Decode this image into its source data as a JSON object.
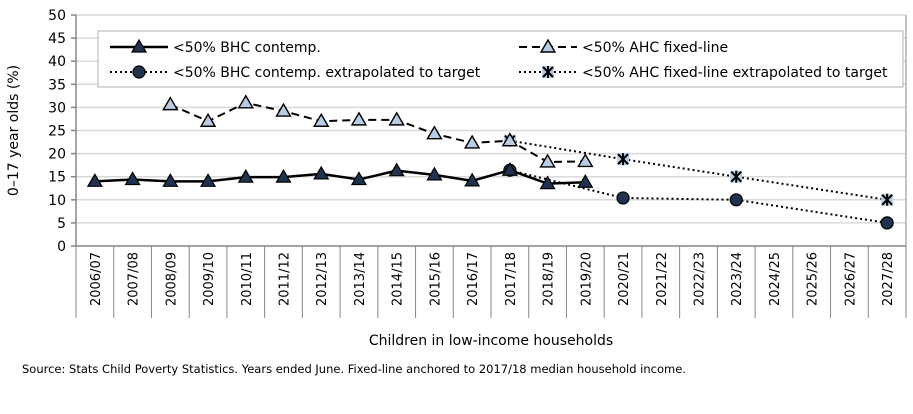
{
  "chart_data": {
    "type": "line",
    "title": "",
    "xlabel": "Children in low-income households",
    "ylabel": "0–17 year olds (%)",
    "ylim": [
      0,
      50
    ],
    "yticks": [
      0,
      5,
      10,
      15,
      20,
      25,
      30,
      35,
      40,
      45,
      50
    ],
    "grid": true,
    "legend_position": "top",
    "categories": [
      "2006/07",
      "2007/08",
      "2008/09",
      "2009/10",
      "2010/11",
      "2011/12",
      "2012/13",
      "2013/14",
      "2014/15",
      "2015/16",
      "2016/17",
      "2017/18",
      "2018/19",
      "2019/20",
      "2020/21",
      "2021/22",
      "2022/23",
      "2023/24",
      "2024/25",
      "2025/26",
      "2026/27",
      "2027/28"
    ],
    "series": [
      {
        "name": "<50% BHC contemp.",
        "style": "solid",
        "marker": "triangle-filled",
        "values": [
          14.0,
          14.4,
          14.0,
          14.0,
          14.9,
          14.9,
          15.6,
          14.4,
          16.3,
          15.4,
          14.1,
          16.4,
          13.5,
          13.8,
          null,
          null,
          null,
          null,
          null,
          null,
          null,
          null
        ]
      },
      {
        "name": "<50% AHC fixed-line",
        "style": "dashed",
        "marker": "triangle-open",
        "values": [
          null,
          null,
          30.6,
          27.0,
          31.0,
          29.2,
          27.0,
          27.3,
          27.3,
          24.3,
          22.3,
          22.8,
          18.2,
          18.3,
          null,
          null,
          null,
          null,
          null,
          null,
          null,
          null
        ]
      },
      {
        "name": "<50% BHC contemp. extrapolated to target",
        "style": "dotted",
        "marker": "circle",
        "values": [
          null,
          null,
          null,
          null,
          null,
          null,
          null,
          null,
          null,
          null,
          null,
          16.4,
          null,
          null,
          10.4,
          null,
          null,
          10.0,
          null,
          null,
          null,
          5.0
        ]
      },
      {
        "name": "<50% AHC fixed-line extrapolated to target",
        "style": "dotted",
        "marker": "star",
        "values": [
          null,
          null,
          null,
          null,
          null,
          null,
          null,
          null,
          null,
          null,
          null,
          22.8,
          null,
          null,
          18.8,
          null,
          null,
          15.0,
          null,
          null,
          null,
          10.0
        ]
      }
    ],
    "colors": {
      "line": "#000000",
      "marker_dark": "#1f3350",
      "marker_light": "#b8cce4",
      "grid": "#d9d9d9",
      "axis": "#868686"
    }
  },
  "source": "Source: Stats Child Poverty Statistics. Years ended June. Fixed-line anchored to 2017/18 median household income."
}
